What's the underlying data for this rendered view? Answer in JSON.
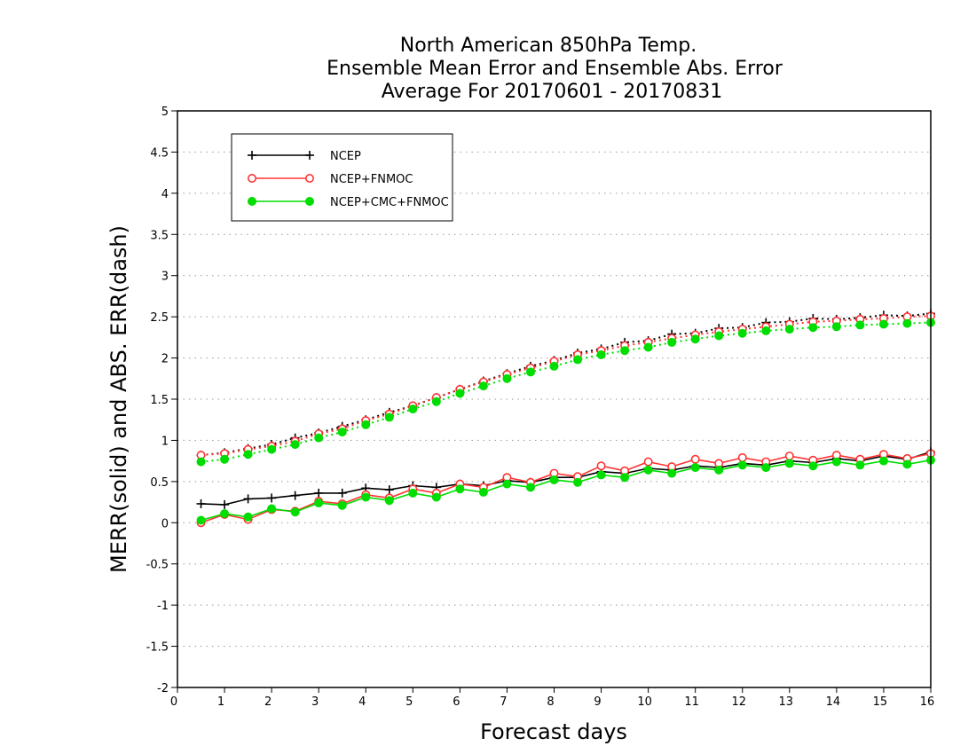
{
  "chart_data": {
    "type": "line",
    "title": [
      "North American 850hPa Temp.",
      "Ensemble Mean Error and Ensemble Abs. Error",
      "Average For 20170601 - 20170831"
    ],
    "xlabel": "Forecast days",
    "ylabel": "MERR(solid) and ABS. ERR(dash)",
    "xlim": [
      0,
      16
    ],
    "ylim": [
      -2,
      5
    ],
    "xticks": [
      0,
      1,
      2,
      3,
      4,
      5,
      6,
      7,
      8,
      9,
      10,
      11,
      12,
      13,
      14,
      15,
      16
    ],
    "yticks": [
      -2,
      -1.5,
      -1,
      -0.5,
      0,
      0.5,
      1,
      1.5,
      2,
      2.5,
      3,
      3.5,
      4,
      4.5,
      5
    ],
    "ytick_labels": [
      "-2",
      "-1.5",
      "-1",
      "-0.5",
      "0",
      "0.5",
      "1",
      "1.5",
      "2",
      "2.5",
      "3",
      "3.5",
      "4",
      "4.5",
      "5"
    ],
    "grid": "horizontal dotted",
    "legend_position": "top-left",
    "x": [
      0.5,
      1,
      1.5,
      2,
      2.5,
      3,
      3.5,
      4,
      4.5,
      5,
      5.5,
      6,
      6.5,
      7,
      7.5,
      8,
      8.5,
      9,
      9.5,
      10,
      10.5,
      11,
      11.5,
      12,
      12.5,
      13,
      13.5,
      14,
      14.5,
      15,
      15.5,
      16
    ],
    "series": [
      {
        "name": "NCEP",
        "color": "#000000",
        "marker": "plus",
        "merr": [
          0.23,
          0.22,
          0.29,
          0.3,
          0.33,
          0.36,
          0.36,
          0.42,
          0.4,
          0.45,
          0.43,
          0.47,
          0.45,
          0.51,
          0.49,
          0.55,
          0.55,
          0.62,
          0.6,
          0.66,
          0.64,
          0.69,
          0.67,
          0.72,
          0.7,
          0.75,
          0.73,
          0.78,
          0.75,
          0.81,
          0.77,
          0.86
        ],
        "abs_err": [
          0.82,
          0.85,
          0.9,
          0.95,
          1.03,
          1.09,
          1.17,
          1.25,
          1.34,
          1.42,
          1.52,
          1.62,
          1.72,
          1.81,
          1.9,
          1.97,
          2.06,
          2.11,
          2.19,
          2.21,
          2.29,
          2.3,
          2.36,
          2.37,
          2.43,
          2.44,
          2.48,
          2.47,
          2.49,
          2.52,
          2.51,
          2.54
        ]
      },
      {
        "name": "NCEP+FNMOC",
        "color": "#ff3333",
        "marker": "open-circle",
        "merr": [
          0.0,
          0.1,
          0.04,
          0.16,
          0.14,
          0.26,
          0.23,
          0.34,
          0.3,
          0.41,
          0.36,
          0.47,
          0.43,
          0.55,
          0.49,
          0.6,
          0.56,
          0.69,
          0.63,
          0.74,
          0.68,
          0.77,
          0.72,
          0.79,
          0.74,
          0.81,
          0.76,
          0.82,
          0.77,
          0.83,
          0.78,
          0.84
        ],
        "abs_err": [
          0.82,
          0.84,
          0.89,
          0.93,
          0.99,
          1.08,
          1.14,
          1.24,
          1.32,
          1.42,
          1.52,
          1.62,
          1.71,
          1.8,
          1.88,
          1.96,
          2.04,
          2.09,
          2.15,
          2.19,
          2.24,
          2.28,
          2.32,
          2.35,
          2.38,
          2.41,
          2.44,
          2.45,
          2.47,
          2.48,
          2.5,
          2.51
        ]
      },
      {
        "name": "NCEP+CMC+FNMOC",
        "color": "#00dd00",
        "marker": "filled-circle",
        "merr": [
          0.03,
          0.11,
          0.07,
          0.17,
          0.13,
          0.24,
          0.21,
          0.31,
          0.27,
          0.36,
          0.31,
          0.41,
          0.37,
          0.47,
          0.43,
          0.52,
          0.49,
          0.58,
          0.55,
          0.64,
          0.6,
          0.67,
          0.64,
          0.7,
          0.67,
          0.72,
          0.69,
          0.74,
          0.7,
          0.75,
          0.71,
          0.76
        ],
        "abs_err": [
          0.74,
          0.77,
          0.83,
          0.89,
          0.95,
          1.03,
          1.1,
          1.19,
          1.28,
          1.38,
          1.47,
          1.57,
          1.66,
          1.75,
          1.83,
          1.9,
          1.98,
          2.04,
          2.09,
          2.13,
          2.19,
          2.23,
          2.27,
          2.3,
          2.33,
          2.35,
          2.37,
          2.38,
          2.4,
          2.41,
          2.42,
          2.43
        ]
      }
    ]
  }
}
